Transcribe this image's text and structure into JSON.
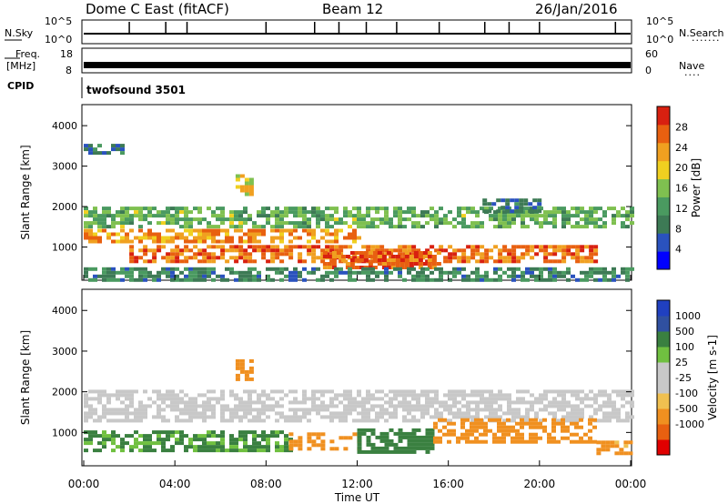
{
  "header": {
    "title_left": "Dome C East (fitACF)",
    "title_mid": "Beam 12",
    "title_right": "26/Jan/2016"
  },
  "strip": {
    "nsky_label": "N.Sky",
    "nsky_ticks": [
      "10^5",
      "10^0"
    ],
    "nsearch_label": "N.Search",
    "nsearch_ticks": [
      "10^5",
      "10^0"
    ],
    "freq_label": "Freq.",
    "freq_unit": "[MHz]",
    "freq_ticks": [
      "18",
      "8"
    ],
    "nave_label": "Nave",
    "nave_ticks": [
      "60",
      "0"
    ],
    "cpid_label": "CPID",
    "cpid_value": "twofsound 3501"
  },
  "colors": {
    "power_scale": [
      "#0000ff",
      "#2a52be",
      "#3d7a55",
      "#4a9a60",
      "#7fc050",
      "#f0d020",
      "#f0a020",
      "#e86010",
      "#d82010"
    ],
    "velocity_scale": [
      "#e00000",
      "#e86010",
      "#f09020",
      "#f0c050",
      "#c8c8c8",
      "#c8c8c8",
      "#70c040",
      "#3a8040",
      "#3050a0",
      "#2040c0"
    ]
  },
  "chart_data": [
    {
      "type": "heatmap",
      "title": "",
      "xlabel": "",
      "ylabel": "Slant Range [km]",
      "xlim": [
        "00:00",
        "24:00"
      ],
      "ylim": [
        180,
        4520
      ],
      "yticks": [
        1000,
        2000,
        3000,
        4000
      ],
      "colorbar": {
        "label": "Power [dB]",
        "ticks": [
          4,
          8,
          12,
          16,
          20,
          24,
          28
        ],
        "range": [
          0,
          32
        ]
      },
      "bands": [
        {
          "start": "00:00",
          "end": "24:00",
          "range_km": [
            1500,
            2000
          ],
          "value_db": 14
        },
        {
          "start": "00:00",
          "end": "12:00",
          "range_km": [
            1150,
            1450
          ],
          "value_db": 24
        },
        {
          "start": "02:00",
          "end": "22:30",
          "range_km": [
            650,
            1050
          ],
          "value_db": 26
        },
        {
          "start": "10:30",
          "end": "15:30",
          "range_km": [
            500,
            900
          ],
          "value_db": 27
        },
        {
          "start": "06:40",
          "end": "07:20",
          "range_km": [
            2300,
            2800
          ],
          "value_db": 20
        },
        {
          "start": "00:00",
          "end": "24:00",
          "range_km": [
            200,
            500
          ],
          "value_db": 10
        },
        {
          "start": "00:00",
          "end": "01:40",
          "range_km": [
            3350,
            3550
          ],
          "value_db": 8
        },
        {
          "start": "17:30",
          "end": "20:00",
          "range_km": [
            1900,
            2200
          ],
          "value_db": 8
        }
      ]
    },
    {
      "type": "heatmap",
      "title": "",
      "xlabel": "Time UT",
      "ylabel": "Slant Range [km]",
      "xticks": [
        "00:00",
        "04:00",
        "08:00",
        "12:00",
        "16:00",
        "20:00",
        "00:00"
      ],
      "xlim": [
        "00:00",
        "24:00"
      ],
      "ylim": [
        180,
        4520
      ],
      "yticks": [
        1000,
        2000,
        3000,
        4000
      ],
      "colorbar": {
        "label": "Velocity [m s-1]",
        "ticks": [
          1000,
          500,
          100,
          25,
          -25,
          -100,
          -500,
          -1000
        ]
      },
      "bands": [
        {
          "start": "00:00",
          "end": "24:00",
          "range_km": [
            1300,
            2050
          ],
          "value_ms": 0
        },
        {
          "start": "00:00",
          "end": "09:00",
          "range_km": [
            600,
            1050
          ],
          "value_ms": 150
        },
        {
          "start": "09:00",
          "end": "12:00",
          "range_km": [
            600,
            1000
          ],
          "value_ms": -300
        },
        {
          "start": "12:00",
          "end": "15:20",
          "range_km": [
            550,
            1100
          ],
          "value_ms": 300
        },
        {
          "start": "15:20",
          "end": "22:30",
          "range_km": [
            750,
            1350
          ],
          "value_ms": -300
        },
        {
          "start": "06:40",
          "end": "07:20",
          "range_km": [
            2300,
            2800
          ],
          "value_ms": -300
        },
        {
          "start": "22:30",
          "end": "24:00",
          "range_km": [
            500,
            800
          ],
          "value_ms": -200
        }
      ]
    }
  ]
}
